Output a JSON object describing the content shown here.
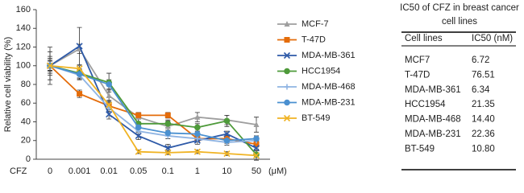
{
  "chart_data": {
    "type": "line",
    "ylabel": "Relative cell viability (%)",
    "xlabel": "CFZ",
    "xunit": "(μM)",
    "categories": [
      "0",
      "0.001",
      "0.01",
      "0.05",
      "0.1",
      "1",
      "10",
      "50"
    ],
    "ylim": [
      0,
      160
    ],
    "yticks": [
      0,
      20,
      40,
      60,
      80,
      100,
      120,
      140,
      160
    ],
    "legend": "right",
    "series": [
      {
        "name": "MCF-7",
        "color": "#9e9e9e",
        "marker": "triangle",
        "values": [
          100,
          118,
          68,
          45,
          35,
          45,
          42,
          37
        ],
        "errors": [
          10,
          5,
          6,
          5,
          6,
          5,
          5,
          8
        ]
      },
      {
        "name": "T-47D",
        "color": "#e46c0a",
        "marker": "square",
        "values": [
          100,
          70,
          57,
          47,
          47,
          22,
          22,
          16
        ],
        "errors": [
          5,
          4,
          4,
          3,
          3,
          3,
          3,
          3
        ]
      },
      {
        "name": "MDA-MB-361",
        "color": "#2e5aa8",
        "marker": "x",
        "values": [
          100,
          121,
          48,
          25,
          12,
          20,
          27,
          12
        ],
        "errors": [
          20,
          20,
          5,
          4,
          4,
          4,
          3,
          3
        ]
      },
      {
        "name": "HCC1954",
        "color": "#4e9a3a",
        "marker": "circle",
        "values": [
          100,
          92,
          82,
          38,
          38,
          34,
          41,
          5
        ],
        "errors": [
          8,
          5,
          10,
          5,
          4,
          4,
          6,
          6
        ]
      },
      {
        "name": "MDA-MB-468",
        "color": "#8fb4e3",
        "marker": "plus",
        "values": [
          100,
          90,
          55,
          30,
          25,
          22,
          18,
          20
        ],
        "errors": [
          6,
          5,
          4,
          3,
          3,
          3,
          3,
          3
        ]
      },
      {
        "name": "MDA-MB-231",
        "color": "#4a90d0",
        "marker": "circle",
        "values": [
          100,
          91,
          80,
          34,
          28,
          27,
          20,
          22
        ],
        "errors": [
          5,
          5,
          5,
          4,
          3,
          3,
          3,
          3
        ]
      },
      {
        "name": "BT-549",
        "color": "#f0b323",
        "marker": "x",
        "values": [
          100,
          97,
          58,
          8,
          7,
          8,
          6,
          4
        ],
        "errors": [
          15,
          3,
          5,
          2,
          2,
          2,
          2,
          2
        ]
      }
    ]
  },
  "table": {
    "title": "IC50 of CFZ in breast cancer cell lines",
    "header": [
      "Cell lines",
      "IC50 (nM)"
    ],
    "rows": [
      [
        "MCF7",
        "6.72"
      ],
      [
        "T-47D",
        "76.51"
      ],
      [
        "MDA-MB-361",
        "6.34"
      ],
      [
        "HCC1954",
        "21.35"
      ],
      [
        "MDA-MB-468",
        "14.40"
      ],
      [
        "MDA-MB-231",
        "22.36"
      ],
      [
        "BT-549",
        "10.80"
      ]
    ]
  }
}
